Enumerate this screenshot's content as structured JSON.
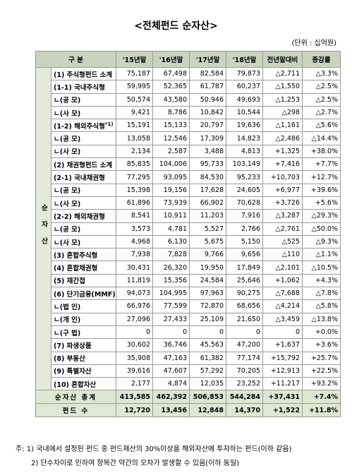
{
  "title": "<전체펀드 순자산>",
  "unit": "(단위 : 십억원)",
  "table": {
    "headers": [
      "구 분",
      "'15년말",
      "'16년말",
      "'17년말",
      "'18년말",
      "전년말대비",
      "증감률"
    ],
    "side_label": "순자산",
    "rows": [
      {
        "label": "(1) 주식형펀드 소계",
        "values": [
          "75,187",
          "67,498",
          "82,584",
          "79,873",
          "△2,711",
          "△3.3%"
        ]
      },
      {
        "label": "(1-1) 국내주식형",
        "values": [
          "59,995",
          "52,365",
          "61,787",
          "60,237",
          "△1,550",
          "△2.5%"
        ]
      },
      {
        "label": "ㄴ(공 모)",
        "values": [
          "50,574",
          "43,580",
          "50,946",
          "49,693",
          "△1,253",
          "△2.5%"
        ]
      },
      {
        "label": "ㄴ(사 모)",
        "values": [
          "9,421",
          "8,786",
          "10,842",
          "10,544",
          "△298",
          "△2.7%"
        ]
      },
      {
        "label": "(1-2) 해외주식형",
        "sup": "*1)",
        "values": [
          "15,191",
          "15,133",
          "20,797",
          "19,636",
          "△1,161",
          "△5.6%"
        ]
      },
      {
        "label": "ㄴ(공 모)",
        "values": [
          "13,058",
          "12,546",
          "17,309",
          "14,823",
          "△2,486",
          "△14.4%"
        ]
      },
      {
        "label": "ㄴ(사 모)",
        "values": [
          "2,134",
          "2,587",
          "3,488",
          "4,813",
          "+1,325",
          "+38.0%"
        ]
      },
      {
        "label": "(2) 채권형펀드 소계",
        "values": [
          "85,835",
          "104,006",
          "95,733",
          "103,149",
          "+7,416",
          "+7.7%"
        ]
      },
      {
        "label": "(2-1) 국내채권형",
        "values": [
          "77,295",
          "93,095",
          "84,530",
          "95,233",
          "+10,703",
          "+12.7%"
        ]
      },
      {
        "label": "ㄴ(공 모)",
        "values": [
          "15,398",
          "19,156",
          "17,628",
          "24,605",
          "+6,977",
          "+39.6%"
        ]
      },
      {
        "label": "ㄴ(사 모)",
        "values": [
          "61,896",
          "73,939",
          "66,902",
          "70,628",
          "+3,726",
          "+5.6%"
        ]
      },
      {
        "label": "(2-2) 해외채권형",
        "values": [
          "8,541",
          "10,911",
          "11,203",
          "7,916",
          "△3,287",
          "△29.3%"
        ]
      },
      {
        "label": "ㄴ(공 모)",
        "values": [
          "3,573",
          "4,781",
          "5,527",
          "2,766",
          "△2,761",
          "△50.0%"
        ]
      },
      {
        "label": "ㄴ(사 모)",
        "values": [
          "4,968",
          "6,130",
          "5,675",
          "5,150",
          "△525",
          "△9.3%"
        ]
      },
      {
        "label": "(3) 혼합주식형",
        "values": [
          "7,938",
          "7,828",
          "9,766",
          "9,656",
          "△110",
          "△1.1%"
        ]
      },
      {
        "label": "(4) 혼합채권형",
        "values": [
          "30,431",
          "26,320",
          "19,950",
          "17,849",
          "△2,101",
          "△10.5%"
        ]
      },
      {
        "label": "(5) 재간접",
        "values": [
          "11,819",
          "15,356",
          "24,584",
          "25,646",
          "+1,062",
          "+4.3%"
        ]
      },
      {
        "label": "(6) 단기금융(MMF)",
        "values": [
          "94,073",
          "104,995",
          "97,963",
          "90,275",
          "△7,688",
          "△7.8%"
        ]
      },
      {
        "label": "ㄴ(법 인)",
        "values": [
          "66,976",
          "77,599",
          "72,870",
          "68,656",
          "△4,214",
          "△5.8%"
        ]
      },
      {
        "label": "ㄴ(개 인)",
        "values": [
          "27,096",
          "27,433",
          "25,109",
          "21,650",
          "△3,459",
          "△13.8%"
        ]
      },
      {
        "label": "ㄴ(구 법)",
        "values": [
          "0",
          "0",
          "0",
          "0",
          "0",
          "+0.0%"
        ]
      },
      {
        "label": "(7) 파생상품",
        "values": [
          "30,602",
          "36,746",
          "45,563",
          "47,200",
          "+1,637",
          "+3.6%"
        ]
      },
      {
        "label": "(8) 부동산",
        "values": [
          "35,908",
          "47,163",
          "61,382",
          "77,174",
          "+15,792",
          "+25.7%"
        ]
      },
      {
        "label": "(9) 특별자산",
        "values": [
          "39,616",
          "47,607",
          "57,292",
          "70,205",
          "+12,913",
          "+22.5%"
        ]
      },
      {
        "label": "(10) 혼합자산",
        "values": [
          "2,177",
          "4,874",
          "12,035",
          "23,252",
          "+11,217",
          "+93.2%"
        ]
      }
    ],
    "totals": [
      {
        "label": "순자산 총계",
        "values": [
          "413,585",
          "462,392",
          "506,853",
          "544,284",
          "+37,431",
          "+7.4%"
        ]
      },
      {
        "label": "펀드 수",
        "values": [
          "12,720",
          "13,456",
          "12,848",
          "14,370",
          "+1,522",
          "+11.8%"
        ]
      }
    ]
  },
  "notes": [
    "주: 1) 국내에서 설정된 펀드 중 펀드재산의 30%이상을 해외자산에 투자하는 펀드(이하 같음)",
    "2) 단수차이로 인하여 항목간 약간의 오차가 발생할 수 있음(이하 동일)"
  ]
}
